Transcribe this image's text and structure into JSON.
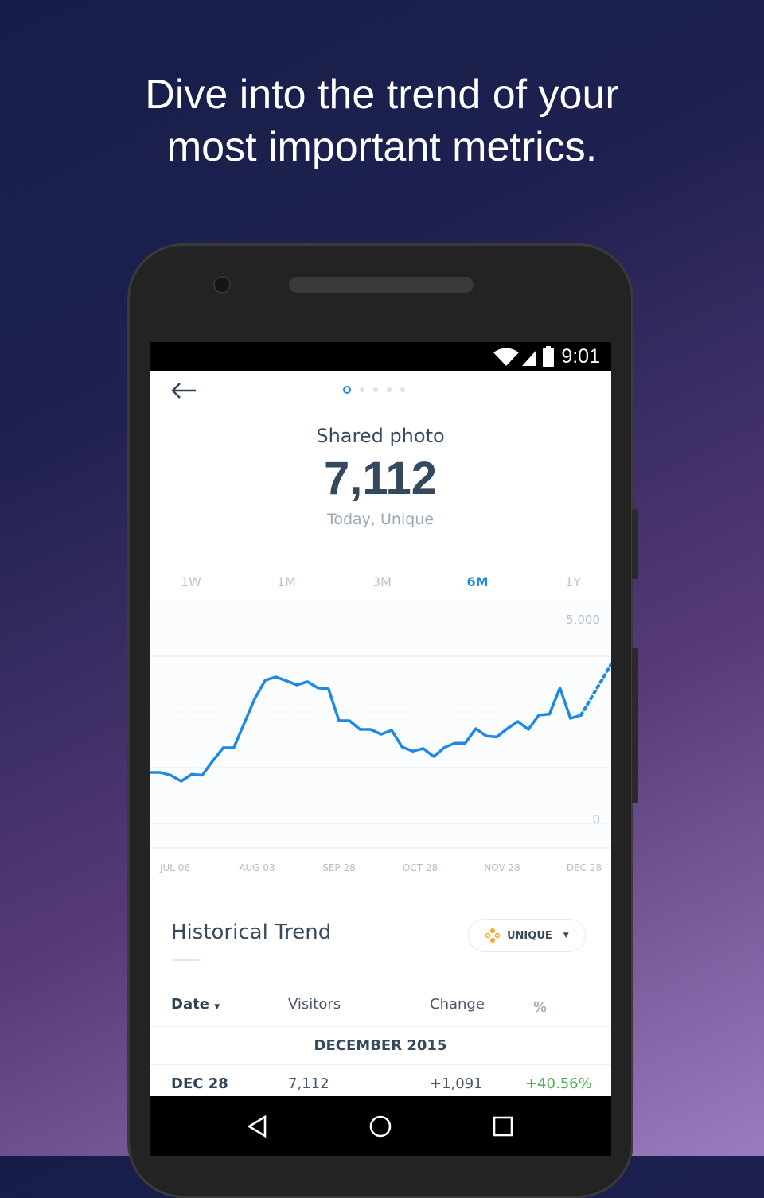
{
  "headline": [
    "Dive into the trend of your",
    "most important metrics."
  ],
  "status": {
    "time": "9:01",
    "icons": [
      "wifi-icon",
      "signal-icon",
      "battery-icon"
    ]
  },
  "header": {
    "back_icon": "arrow-left-icon",
    "page_dots": 5,
    "active_dot": 0
  },
  "metric": {
    "title": "Shared photo",
    "value": "7,112",
    "subtitle": "Today, Unique"
  },
  "tabs": [
    {
      "label": "1W"
    },
    {
      "label": "1M"
    },
    {
      "label": "3M"
    },
    {
      "label": "6M",
      "active": true
    },
    {
      "label": "1Y"
    }
  ],
  "colors": {
    "accent": "#1e88e5",
    "positive": "#4caf50",
    "text": "#3a4a5e",
    "badge_icon": "#f5a623"
  },
  "chart_data": {
    "type": "line",
    "ylim": [
      0,
      5000
    ],
    "ytick_labels": [
      "5,000",
      "0"
    ],
    "xtick_labels": [
      "JUL 06",
      "AUG 03",
      "SEP 28",
      "OCT 28",
      "NOV 28",
      "DEC 28"
    ],
    "grid": true,
    "series": [
      {
        "values": [
          1143,
          1143,
          1080,
          946,
          1100,
          1080,
          1400,
          1696,
          1696,
          2250,
          2800,
          3214,
          3286,
          3200,
          3107,
          3180,
          3040,
          3020,
          2304,
          2304,
          2107,
          2107,
          2000,
          2090,
          1714,
          1620,
          1680,
          1500,
          1700,
          1800,
          1800,
          2125,
          1960,
          1940,
          2125,
          2286,
          2107,
          2430,
          2450,
          3036,
          2357,
          2430
        ]
      }
    ],
    "projection": {
      "style": "dotted",
      "values": [
        2430,
        3571
      ]
    }
  },
  "trend": {
    "title": "Historical Trend",
    "filter": {
      "label": "UNIQUE",
      "icon": "unique-dots-icon"
    },
    "columns": [
      "Date",
      "Visitors",
      "Change",
      "%"
    ],
    "group": "DECEMBER 2015",
    "rows": [
      {
        "date": "DEC 28",
        "visitors": "7,112",
        "change": "+1,091",
        "pct": "+40.56%"
      }
    ]
  },
  "navbar": [
    "back-icon",
    "home-icon",
    "recents-icon"
  ]
}
